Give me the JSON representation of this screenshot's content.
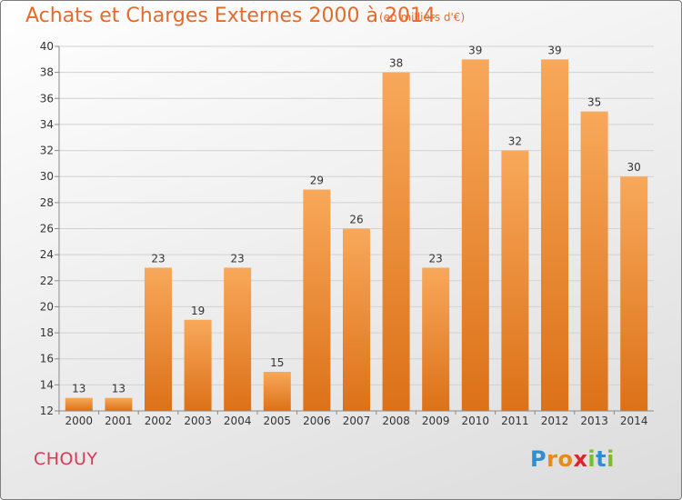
{
  "title": "Achats et Charges Externes 2000 à 2014",
  "subtitle": "(en milliers d'€)",
  "commune": "CHOUY",
  "logo": {
    "text": "Proxiti",
    "letters": [
      {
        "char": "P",
        "color": "#2f8ed0"
      },
      {
        "char": "r",
        "color": "#e88a1b"
      },
      {
        "char": "o",
        "color": "#e88a1b"
      },
      {
        "char": "x",
        "color": "#d7262d"
      },
      {
        "char": "i",
        "color": "#7dbd2d"
      },
      {
        "char": "t",
        "color": "#2f8ed0"
      },
      {
        "char": "i",
        "color": "#7dbd2d"
      }
    ]
  },
  "colors": {
    "bar_light": "#f8a85a",
    "bar_dark": "#dc7118",
    "title": "#e46b2b",
    "commune": "#d73a56",
    "grid": "#d2d2d2"
  },
  "chart_data": {
    "type": "bar",
    "title": "Achats et Charges Externes 2000 à 2014",
    "subtitle": "(en milliers d'€)",
    "categories": [
      "2000",
      "2001",
      "2002",
      "2003",
      "2004",
      "2005",
      "2006",
      "2007",
      "2008",
      "2009",
      "2010",
      "2011",
      "2012",
      "2013",
      "2014"
    ],
    "values": [
      13,
      13,
      23,
      19,
      23,
      15,
      29,
      26,
      38,
      23,
      39,
      32,
      39,
      35,
      30
    ],
    "xlabel": "",
    "ylabel": "",
    "ylim": [
      12,
      40
    ],
    "yticks": [
      12,
      14,
      16,
      18,
      20,
      22,
      24,
      26,
      28,
      30,
      32,
      34,
      36,
      38,
      40
    ],
    "grid": true,
    "data_labels": true
  }
}
